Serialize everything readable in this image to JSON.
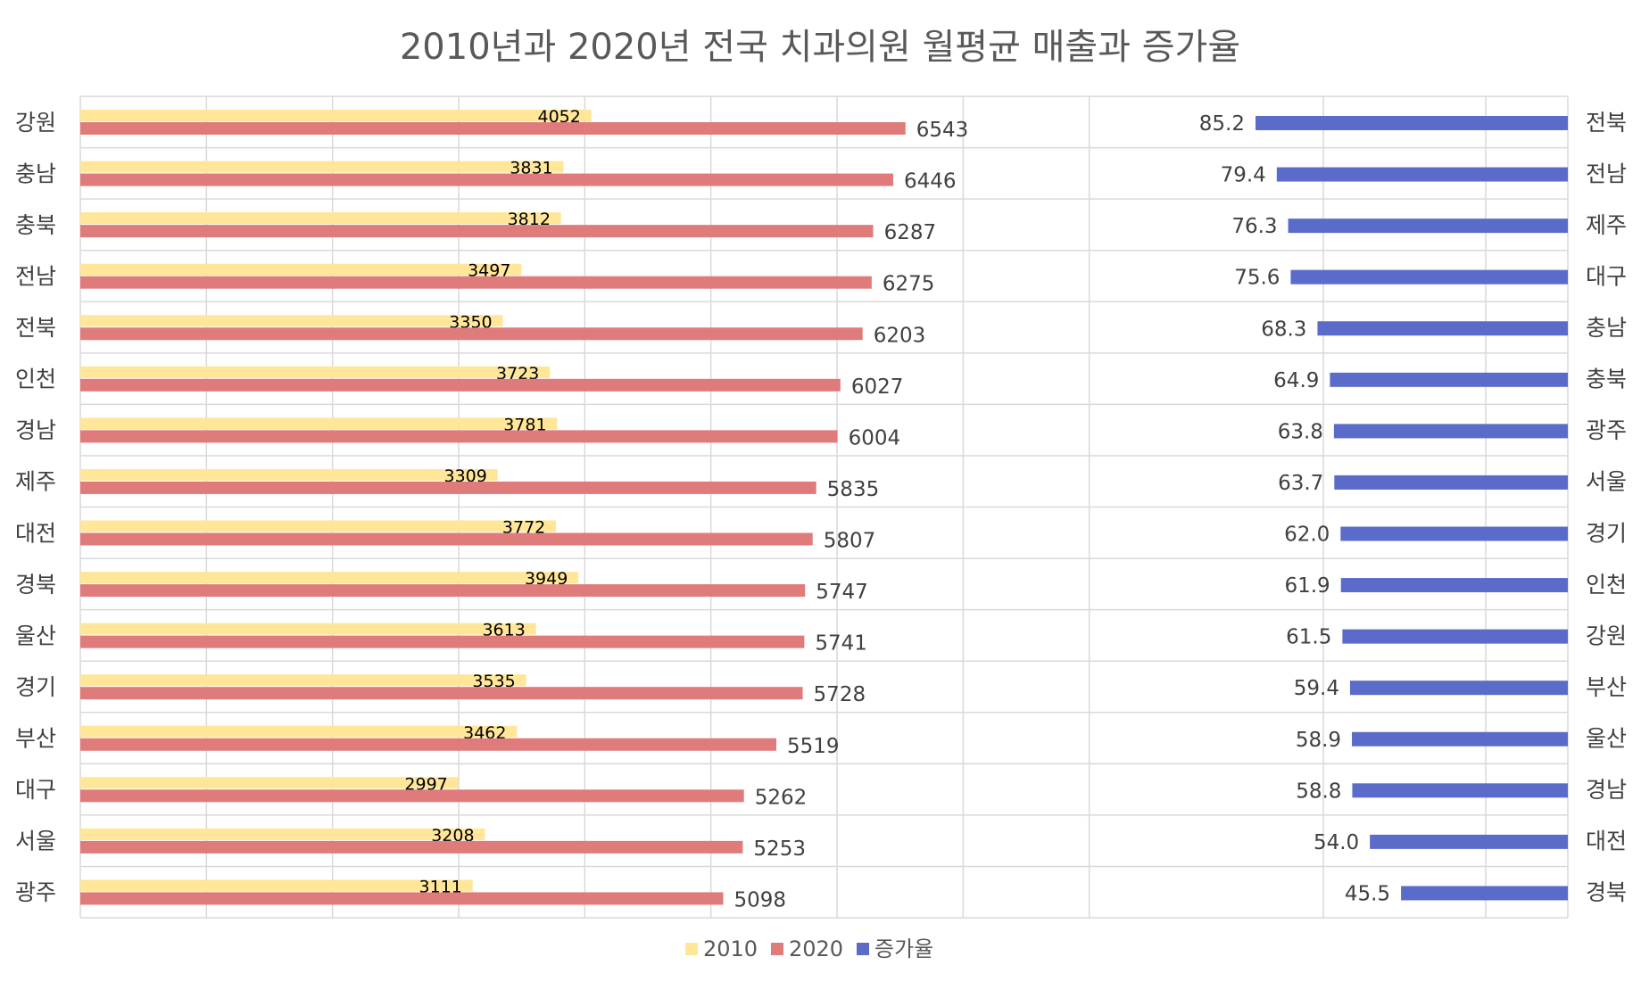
{
  "chart_data": [
    {
      "type": "bar",
      "orientation": "horizontal",
      "title": "2010년과 2020년 전국 치과의원 월평균 매출과 증가율",
      "categories": [
        "강원",
        "충남",
        "충북",
        "전남",
        "전북",
        "인천",
        "경남",
        "제주",
        "대전",
        "경북",
        "울산",
        "경기",
        "부산",
        "대구",
        "서울",
        "광주"
      ],
      "series": [
        {
          "name": "2010",
          "color": "#FFE699",
          "values": [
            4052,
            3831,
            3812,
            3497,
            3350,
            3723,
            3781,
            3309,
            3772,
            3949,
            3613,
            3535,
            3462,
            2997,
            3208,
            3111
          ]
        },
        {
          "name": "2020",
          "color": "#E07B7B",
          "values": [
            6543,
            6446,
            6287,
            6275,
            6203,
            6027,
            6004,
            5835,
            5807,
            5747,
            5741,
            5728,
            5519,
            5262,
            5253,
            5098
          ]
        }
      ],
      "xlim": [
        0,
        9000
      ],
      "grid": true,
      "data_labels": true
    },
    {
      "type": "bar",
      "orientation": "horizontal-reversed",
      "categories": [
        "전북",
        "전남",
        "제주",
        "대구",
        "충남",
        "충북",
        "광주",
        "서울",
        "경기",
        "인천",
        "강원",
        "부산",
        "울산",
        "경남",
        "대전",
        "경북"
      ],
      "series": [
        {
          "name": "증가율",
          "color": "#5B6BC9",
          "values": [
            85.2,
            79.4,
            76.3,
            75.6,
            68.3,
            64.9,
            63.8,
            63.7,
            62.0,
            61.9,
            61.5,
            59.4,
            58.9,
            58.8,
            54.0,
            45.5
          ]
        }
      ],
      "xlim": [
        0,
        140
      ],
      "grid": true,
      "data_labels": true
    }
  ],
  "legend": {
    "placement": "bottom",
    "items": [
      {
        "label": "2010",
        "color": "#FFE699"
      },
      {
        "label": "2020",
        "color": "#E07B7B"
      },
      {
        "label": "증가율",
        "color": "#5B6BC9"
      }
    ]
  }
}
